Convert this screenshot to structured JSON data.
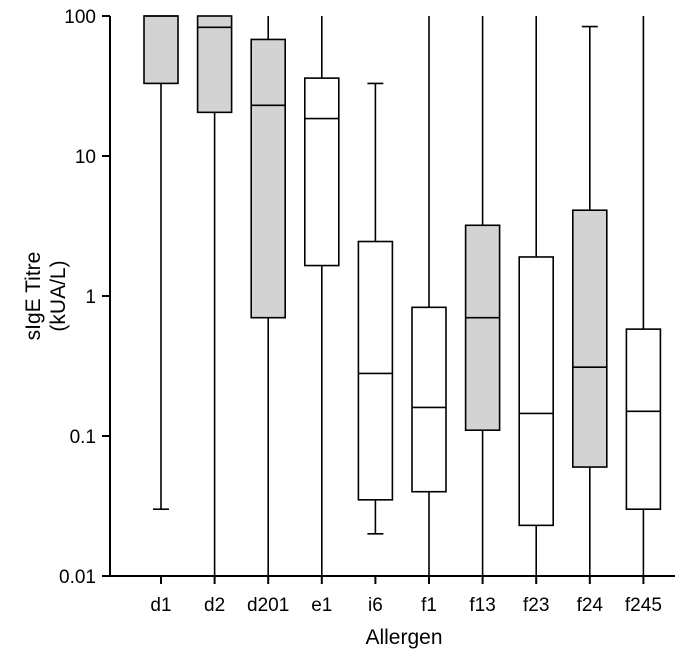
{
  "chart_data": {
    "type": "box",
    "title": "",
    "xlabel": "Allergen",
    "ylabel_lines": [
      "sIgE Titre",
      "(kUA/L)"
    ],
    "yscale": "log",
    "ylim": [
      0.01,
      100
    ],
    "ytick_labels": [
      "0.01",
      "0.1",
      "1",
      "10",
      "100"
    ],
    "grid": false,
    "legend": "none",
    "categories": [
      "d1",
      "d2",
      "d201",
      "e1",
      "i6",
      "f1",
      "f13",
      "f23",
      "f24",
      "f245"
    ],
    "boxes": [
      {
        "category": "d1",
        "min": 0.03,
        "q1": 33,
        "median": 100,
        "q3": 100,
        "max": 100,
        "fill": "#d3d3d3"
      },
      {
        "category": "d2",
        "min": 0.01,
        "q1": 20.5,
        "median": 83,
        "q3": 100,
        "max": 100,
        "fill": "#d3d3d3"
      },
      {
        "category": "d201",
        "min": 0.01,
        "q1": 0.7,
        "median": 23,
        "q3": 68,
        "max": 100,
        "fill": "#d3d3d3"
      },
      {
        "category": "e1",
        "min": 0.01,
        "q1": 1.65,
        "median": 18.5,
        "q3": 36,
        "max": 100,
        "fill": "#ffffff"
      },
      {
        "category": "i6",
        "min": 0.02,
        "q1": 0.035,
        "median": 0.28,
        "q3": 2.45,
        "max": 33,
        "fill": "#ffffff"
      },
      {
        "category": "f1",
        "min": 0.01,
        "q1": 0.04,
        "median": 0.16,
        "q3": 0.83,
        "max": 100,
        "fill": "#ffffff"
      },
      {
        "category": "f13",
        "min": 0.01,
        "q1": 0.11,
        "median": 0.7,
        "q3": 3.2,
        "max": 100,
        "fill": "#d3d3d3"
      },
      {
        "category": "f23",
        "min": 0.01,
        "q1": 0.023,
        "median": 0.145,
        "q3": 1.9,
        "max": 100,
        "fill": "#ffffff"
      },
      {
        "category": "f24",
        "min": 0.01,
        "q1": 0.06,
        "median": 0.31,
        "q3": 4.1,
        "max": 84,
        "fill": "#d3d3d3"
      },
      {
        "category": "f245",
        "min": 0.01,
        "q1": 0.03,
        "median": 0.15,
        "q3": 0.58,
        "max": 100,
        "fill": "#ffffff"
      }
    ]
  }
}
